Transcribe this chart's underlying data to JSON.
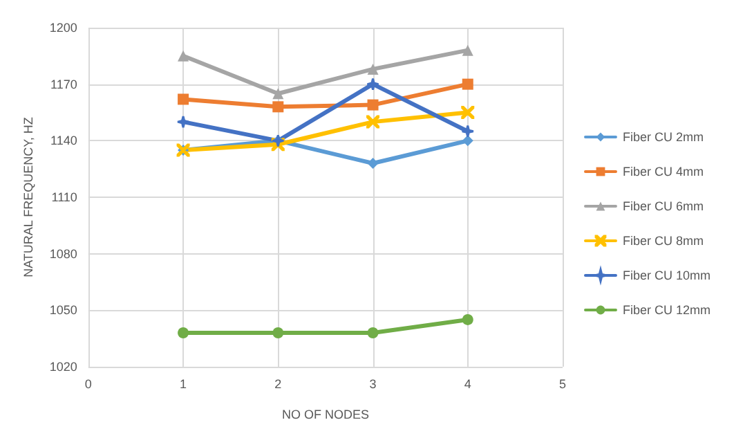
{
  "chart_data": {
    "type": "line",
    "xlabel": "NO OF NODES",
    "ylabel": "NATURAL FREQUENCY, HZ",
    "x": [
      1,
      2,
      3,
      4
    ],
    "xlim": [
      0,
      5
    ],
    "xticks": [
      0,
      1,
      2,
      3,
      4,
      5
    ],
    "ylim": [
      1020,
      1200
    ],
    "yticks": [
      1020,
      1050,
      1080,
      1110,
      1140,
      1170,
      1200
    ],
    "grid": true,
    "legend": "right",
    "series": [
      {
        "name": "Fiber CU 2mm",
        "color": "#5b9bd5",
        "marker": "diamond",
        "values": [
          1135,
          1140,
          1128,
          1140
        ]
      },
      {
        "name": "Fiber CU 4mm",
        "color": "#ed7d31",
        "marker": "square",
        "values": [
          1162,
          1158,
          1159,
          1170
        ]
      },
      {
        "name": "Fiber CU 6mm",
        "color": "#a5a5a5",
        "marker": "triangle",
        "values": [
          1185,
          1165,
          1178,
          1188
        ]
      },
      {
        "name": "Fiber CU 8mm",
        "color": "#ffc000",
        "marker": "cross",
        "values": [
          1135,
          1138,
          1150,
          1155
        ]
      },
      {
        "name": "Fiber CU 10mm",
        "color": "#4472c4",
        "marker": "star",
        "values": [
          1150,
          1140,
          1170,
          1145
        ]
      },
      {
        "name": "Fiber CU 12mm",
        "color": "#70ad47",
        "marker": "circle",
        "values": [
          1038,
          1038,
          1038,
          1045
        ]
      }
    ]
  }
}
